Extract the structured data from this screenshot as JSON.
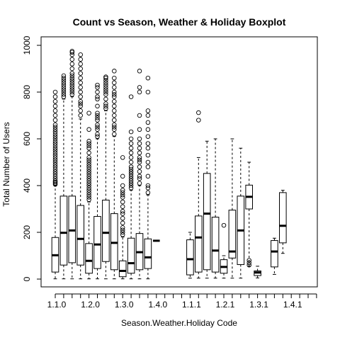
{
  "chart_data": {
    "type": "boxplot",
    "title": "Count vs Season, Weather & Holiday Boxplot",
    "xlabel": "Season.Weather.Holiday Code",
    "ylabel": "Total Number of Users",
    "ylim": [
      0,
      1000
    ],
    "y_ticks": [
      0,
      200,
      400,
      600,
      800,
      1000
    ],
    "x_tick_labels": [
      "1.1.0",
      "1.2.0",
      "1.3.0",
      "1.4.0",
      "1.1.1",
      "1.2.1",
      "1.3.1",
      "1.4.1"
    ],
    "grid": false,
    "legend": "none",
    "colors": {
      "box_stroke": "#000000",
      "background": "#ffffff"
    },
    "groups": [
      {
        "position": 1,
        "box": {
          "min": 1,
          "q1": 30,
          "median": 102,
          "q3": 178,
          "max": 400
        },
        "outliers": [
          405,
          410,
          415,
          420,
          430,
          440,
          450,
          460,
          470,
          480,
          490,
          500,
          510,
          520,
          530,
          540,
          550,
          560,
          570,
          580,
          590,
          600,
          610,
          620,
          630,
          640,
          650,
          660,
          680,
          700,
          720,
          740,
          760,
          780,
          800
        ]
      },
      {
        "position": 2,
        "box": {
          "min": 1,
          "q1": 60,
          "median": 198,
          "q3": 355,
          "max": 770
        },
        "outliers": [
          780,
          790,
          800,
          810,
          820,
          830,
          840,
          850,
          860,
          870
        ]
      },
      {
        "position": 3,
        "box": {
          "min": 1,
          "q1": 70,
          "median": 208,
          "q3": 355,
          "max": 780
        },
        "outliers": [
          790,
          800,
          810,
          820,
          830,
          840,
          850,
          860,
          870,
          880,
          900,
          920,
          940,
          960,
          970,
          975
        ]
      },
      {
        "position": 4,
        "box": {
          "min": 1,
          "q1": 60,
          "median": 172,
          "q3": 315,
          "max": 685
        },
        "outliers": [
          700,
          720,
          740,
          750,
          760,
          780,
          800,
          820,
          840,
          860,
          880,
          900,
          920,
          940,
          960
        ]
      },
      {
        "position": 5,
        "box": {
          "min": 1,
          "q1": 25,
          "median": 78,
          "q3": 152,
          "max": 330
        },
        "outliers": [
          340,
          350,
          360,
          370,
          380,
          390,
          400,
          410,
          420,
          430,
          440,
          450,
          460,
          470,
          480,
          490,
          500,
          510,
          520,
          540,
          560,
          570,
          580,
          590,
          640,
          710
        ]
      },
      {
        "position": 6,
        "box": {
          "min": 1,
          "q1": 45,
          "median": 148,
          "q3": 268,
          "max": 600
        },
        "outliers": [
          610,
          620,
          640,
          650,
          660,
          680,
          690,
          700,
          710,
          740,
          770,
          780,
          800,
          820,
          830
        ]
      },
      {
        "position": 7,
        "box": {
          "min": 1,
          "q1": 75,
          "median": 198,
          "q3": 338,
          "max": 720
        },
        "outliers": [
          730,
          740,
          750,
          770,
          790,
          800,
          810,
          820,
          830,
          840,
          850,
          860,
          865
        ]
      },
      {
        "position": 8,
        "box": {
          "min": 1,
          "q1": 40,
          "median": 155,
          "q3": 280,
          "max": 610
        },
        "outliers": [
          620,
          640,
          650,
          660,
          680,
          700,
          720,
          740,
          760,
          780,
          790,
          800,
          820,
          840,
          860,
          890
        ]
      },
      {
        "position": 9,
        "box": {
          "min": 1,
          "q1": 10,
          "median": 35,
          "q3": 78,
          "max": 180
        },
        "outliers": [
          190,
          200,
          210,
          220,
          240,
          260,
          280,
          290,
          310,
          330,
          350,
          360,
          370,
          380,
          400,
          440,
          520
        ]
      },
      {
        "position": 10,
        "box": {
          "min": 1,
          "q1": 25,
          "median": 68,
          "q3": 175,
          "max": 380
        },
        "outliers": [
          390,
          400,
          410,
          420,
          430,
          440,
          450,
          460,
          470,
          480,
          500,
          520,
          540,
          560,
          580,
          600,
          630,
          780
        ]
      },
      {
        "position": 11,
        "box": {
          "min": 1,
          "q1": 40,
          "median": 115,
          "q3": 195,
          "max": 400
        },
        "outliers": [
          410,
          430,
          440,
          460,
          480,
          500,
          510,
          520,
          540,
          560,
          580,
          600,
          640,
          700,
          800,
          820,
          890
        ]
      },
      {
        "position": 12,
        "box": {
          "min": 1,
          "q1": 45,
          "median": 93,
          "q3": 172,
          "max": 360
        },
        "outliers": [
          370,
          390,
          400,
          440,
          480,
          500,
          530,
          560,
          580,
          610,
          640,
          670,
          700,
          720,
          800,
          860
        ]
      },
      {
        "position": 13,
        "box": {
          "min": 164,
          "q1": 164,
          "median": 164,
          "q3": 164,
          "max": 164
        },
        "outliers": []
      },
      {
        "position": 17,
        "box": {
          "min": 4,
          "q1": 18,
          "median": 85,
          "q3": 168,
          "max": 200
        },
        "outliers": []
      },
      {
        "position": 18,
        "box": {
          "min": 4,
          "q1": 30,
          "median": 178,
          "q3": 270,
          "max": 520
        },
        "outliers": [
          680,
          712
        ]
      },
      {
        "position": 19,
        "box": {
          "min": 4,
          "q1": 40,
          "median": 280,
          "q3": 452,
          "max": 590
        },
        "outliers": []
      },
      {
        "position": 20,
        "box": {
          "min": 4,
          "q1": 30,
          "median": 122,
          "q3": 265,
          "max": 600
        },
        "outliers": []
      },
      {
        "position": 21,
        "box": {
          "min": 4,
          "q1": 25,
          "median": 52,
          "q3": 83,
          "max": 100
        },
        "outliers": [
          230
        ]
      },
      {
        "position": 22,
        "box": {
          "min": 4,
          "q1": 90,
          "median": 118,
          "q3": 295,
          "max": 600
        },
        "outliers": []
      },
      {
        "position": 23,
        "box": {
          "min": 4,
          "q1": 62,
          "median": 208,
          "q3": 355,
          "max": 560
        },
        "outliers": []
      },
      {
        "position": 24,
        "box": {
          "min": 55,
          "q1": 300,
          "median": 352,
          "q3": 402,
          "max": 500
        },
        "outliers": [
          60,
          70,
          80
        ]
      },
      {
        "position": 25,
        "box": {
          "min": 5,
          "q1": 15,
          "median": 28,
          "q3": 35,
          "max": 55
        },
        "outliers": []
      },
      {
        "position": 27,
        "box": {
          "min": 20,
          "q1": 52,
          "median": 118,
          "q3": 165,
          "max": 175
        },
        "outliers": []
      },
      {
        "position": 28,
        "box": {
          "min": 110,
          "q1": 155,
          "median": 228,
          "q3": 370,
          "max": 380
        },
        "outliers": []
      }
    ],
    "n_positions": 32
  }
}
